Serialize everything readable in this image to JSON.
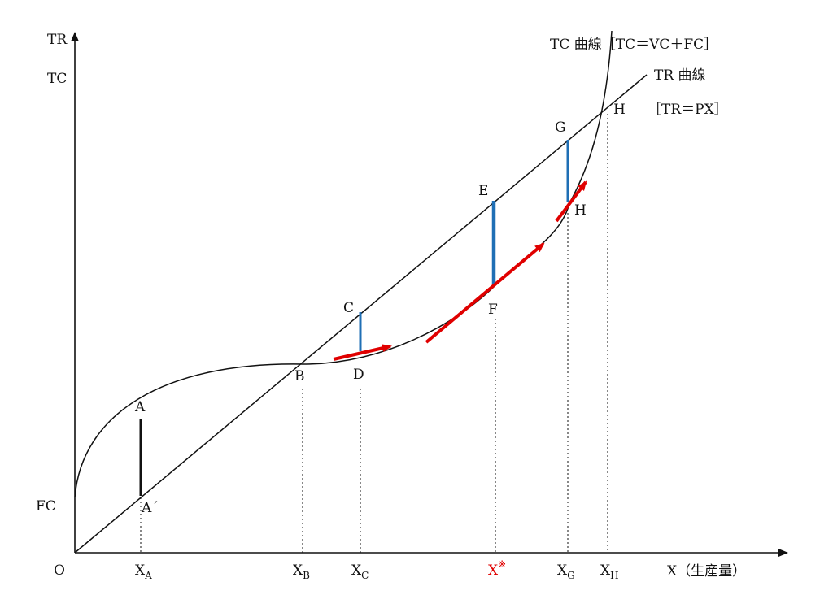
{
  "axes": {
    "y_label_1": "TR",
    "y_label_2": "TC",
    "origin": "O",
    "x_label": "X（生産量）",
    "fc_label": "FC"
  },
  "curves": {
    "tc_label": "TC 曲線［TC＝VC＋FC］",
    "tr_label": "TR 曲線",
    "tr_formula": "［TR＝PX］"
  },
  "points": {
    "A": "A",
    "A_prime": "A´",
    "B": "B",
    "C": "C",
    "D": "D",
    "E": "E",
    "F": "F",
    "G": "G",
    "H_tc": "H",
    "H_top": "H"
  },
  "x_ticks": [
    {
      "main": "X",
      "sub": "A"
    },
    {
      "main": "X",
      "sub": "B"
    },
    {
      "main": "X",
      "sub": "C"
    },
    {
      "main": "X",
      "sub": "※",
      "color": "#e00000"
    },
    {
      "main": "X",
      "sub": "G"
    },
    {
      "main": "X",
      "sub": "H"
    }
  ],
  "colors": {
    "axis": "#111111",
    "gap_blue": "#1f6fb5",
    "slope_red": "#e00000"
  }
}
